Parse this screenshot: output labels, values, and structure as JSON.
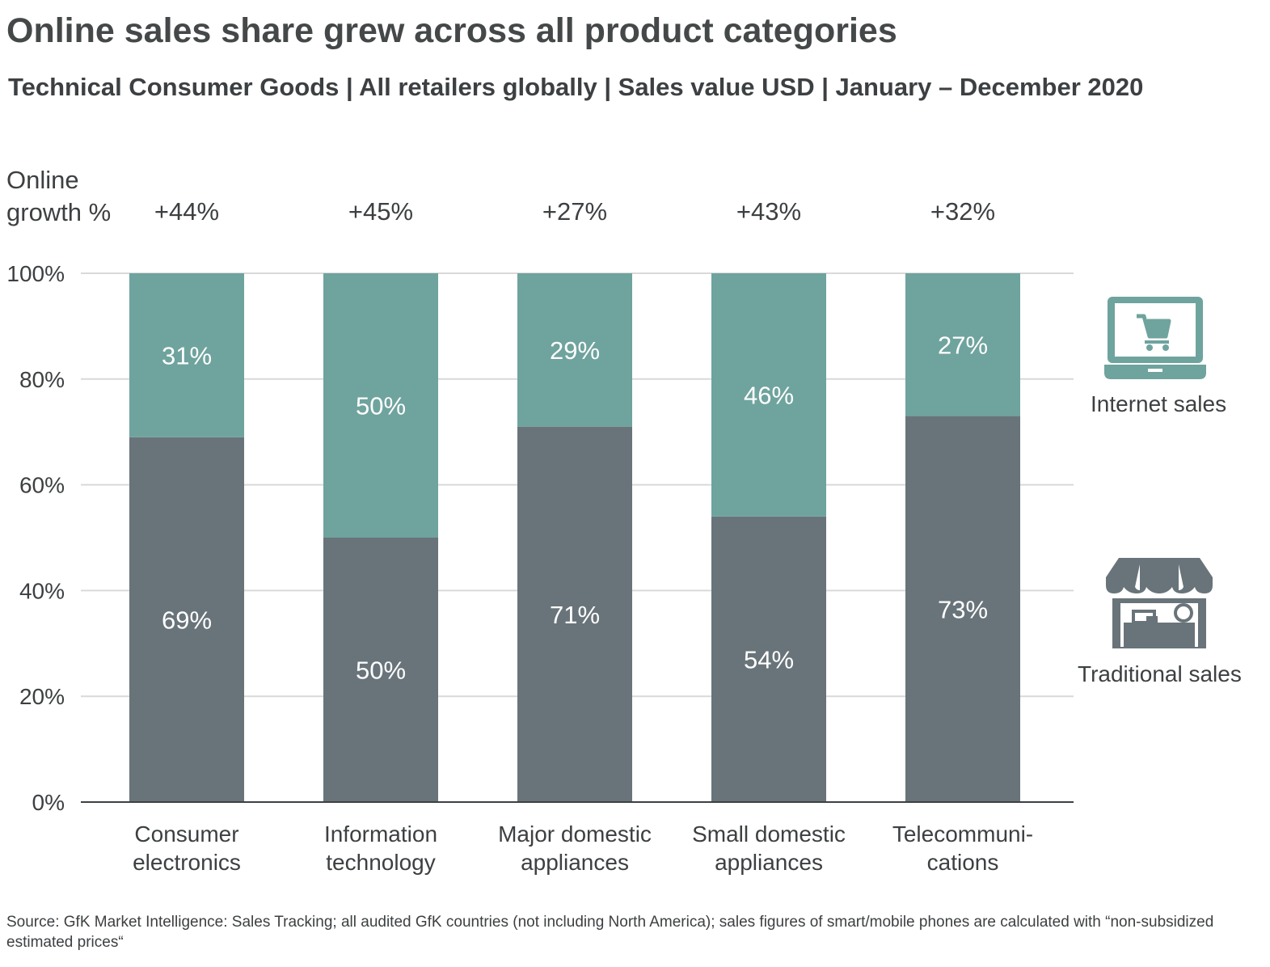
{
  "title": "Online sales share grew across all product categories",
  "subtitle": "Technical Consumer Goods | All retailers globally | Sales value USD | January – December 2020",
  "growth_label_line1": "Online",
  "growth_label_line2": "growth %",
  "legend": {
    "internet": {
      "label": "Internet sales",
      "icon": "laptop-cart-icon",
      "color": "#6fa39e"
    },
    "traditional": {
      "label": "Traditional sales",
      "icon": "storefront-icon",
      "color": "#69747a"
    }
  },
  "source": "Source: GfK Market Intelligence: Sales Tracking; all audited GfK countries (not including North America); sales figures of smart/mobile phones are calculated with “non-subsidized estimated prices“",
  "chart_data": {
    "type": "bar",
    "stacked": true,
    "categories": [
      [
        "Consumer",
        "electronics"
      ],
      [
        "Information",
        "technology"
      ],
      [
        "Major domestic",
        "appliances"
      ],
      [
        "Small domestic",
        "appliances"
      ],
      [
        "Telecommuni-",
        "cations"
      ]
    ],
    "series": [
      {
        "name": "Traditional sales",
        "color": "#69747a",
        "values": [
          69,
          50,
          71,
          54,
          73
        ],
        "labels": [
          "69%",
          "50%",
          "71%",
          "54%",
          "73%"
        ]
      },
      {
        "name": "Internet sales",
        "color": "#6fa39e",
        "values": [
          31,
          50,
          29,
          46,
          27
        ],
        "labels": [
          "31%",
          "50%",
          "29%",
          "46%",
          "27%"
        ]
      }
    ],
    "online_growth": [
      "+44%",
      "+45%",
      "+27%",
      "+43%",
      "+32%"
    ],
    "yticks": [
      "0%",
      "20%",
      "40%",
      "60%",
      "80%",
      "100%"
    ],
    "ylim": [
      0,
      100
    ],
    "grid": true,
    "legend_position": "right"
  }
}
